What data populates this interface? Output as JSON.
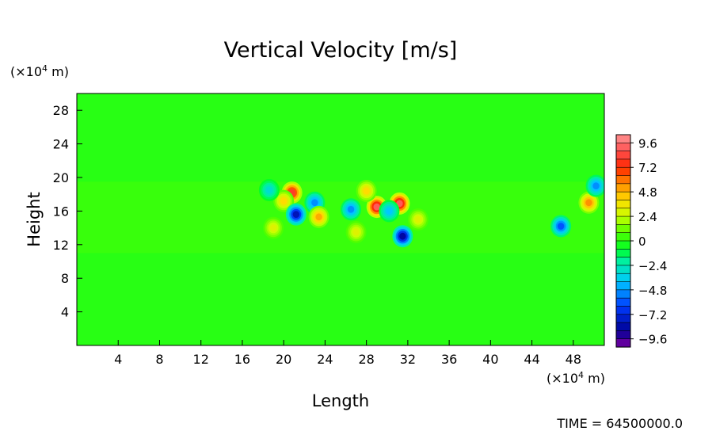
{
  "chart_data": {
    "type": "heatmap",
    "title": "Vertical Velocity [m/s]",
    "xlabel": "Length",
    "ylabel": "Height",
    "x_unit_prefix": "(×10",
    "x_unit_exp": "4",
    "x_unit_suffix": " m)",
    "y_unit_prefix": "(×10",
    "y_unit_exp": "4",
    "y_unit_suffix": " m)",
    "xlim": [
      0,
      51
    ],
    "ylim": [
      0,
      30
    ],
    "x_ticks": [
      4,
      8,
      12,
      16,
      20,
      24,
      28,
      32,
      36,
      40,
      44,
      48
    ],
    "y_ticks": [
      4,
      8,
      12,
      16,
      20,
      24,
      28
    ],
    "background_value": 0,
    "disturbed_band": [
      11,
      19.5
    ],
    "features": [
      {
        "x": 20.8,
        "y": 18.2,
        "value": 8.0
      },
      {
        "x": 20.0,
        "y": 17.2,
        "value": 4.0
      },
      {
        "x": 21.2,
        "y": 15.6,
        "value": -8.0
      },
      {
        "x": 23.0,
        "y": 17.0,
        "value": -5.0
      },
      {
        "x": 23.4,
        "y": 15.3,
        "value": 5.0
      },
      {
        "x": 19.0,
        "y": 14.0,
        "value": 3.0
      },
      {
        "x": 26.5,
        "y": 16.2,
        "value": -5.0
      },
      {
        "x": 29.0,
        "y": 16.5,
        "value": 9.0
      },
      {
        "x": 31.2,
        "y": 16.9,
        "value": 9.0
      },
      {
        "x": 30.2,
        "y": 16.0,
        "value": -4.0
      },
      {
        "x": 31.5,
        "y": 13.0,
        "value": -8.5
      },
      {
        "x": 28.0,
        "y": 18.4,
        "value": 4.0
      },
      {
        "x": 33.0,
        "y": 15.0,
        "value": 3.0
      },
      {
        "x": 46.8,
        "y": 14.2,
        "value": -6.0
      },
      {
        "x": 49.5,
        "y": 17.0,
        "value": 5.5
      },
      {
        "x": 50.2,
        "y": 19.0,
        "value": -5.0
      },
      {
        "x": 18.6,
        "y": 18.5,
        "value": -3.0
      },
      {
        "x": 27.0,
        "y": 13.5,
        "value": 3.0
      }
    ],
    "colorbar": {
      "labels": [
        "9.6",
        "7.2",
        "4.8",
        "2.4",
        "0",
        "−2.4",
        "−4.8",
        "−7.2",
        "−9.6"
      ],
      "values": [
        9.6,
        7.2,
        4.8,
        2.4,
        0,
        -2.4,
        -4.8,
        -7.2,
        -9.6
      ],
      "range": [
        -10.4,
        10.4
      ],
      "levels": 26
    },
    "time_label": "TIME = 64500000.0"
  }
}
